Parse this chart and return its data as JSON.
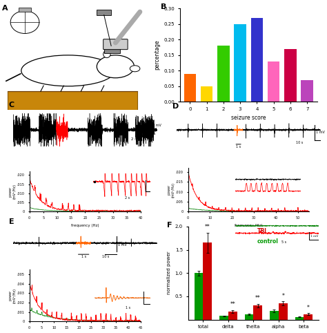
{
  "panel_B": {
    "seizure_scores": [
      0,
      1,
      2,
      3,
      4,
      5,
      6,
      7
    ],
    "percentages": [
      0.09,
      0.05,
      0.18,
      0.25,
      0.27,
      0.13,
      0.17,
      0.07
    ],
    "colors": [
      "#FF6600",
      "#FFD700",
      "#33CC00",
      "#00BBEE",
      "#3333CC",
      "#FF66BB",
      "#CC0044",
      "#BB44BB"
    ],
    "ylim": [
      0,
      0.3
    ],
    "yticks": [
      0.0,
      0.05,
      0.1,
      0.15,
      0.2,
      0.25,
      0.3
    ],
    "xlabel": "seizure score",
    "ylabel": "percentage"
  },
  "panel_F": {
    "categories": [
      "total",
      "delta",
      "thelta",
      "alpha",
      "beta"
    ],
    "green_values": [
      1.0,
      0.08,
      0.11,
      0.19,
      0.06
    ],
    "red_values": [
      1.65,
      0.18,
      0.3,
      0.35,
      0.12
    ],
    "green_errors": [
      0.05,
      0.01,
      0.015,
      0.025,
      0.007
    ],
    "red_errors": [
      0.22,
      0.03,
      0.04,
      0.04,
      0.018
    ],
    "green_color": "#009900",
    "red_color": "#CC0000",
    "ylabel": "normalized power",
    "ylim": [
      0,
      2.0
    ],
    "yticks": [
      0.5,
      1.0,
      1.5,
      2.0
    ],
    "significance_red": [
      "**",
      "**",
      "**",
      "*",
      "*"
    ],
    "legend_tbi": "TBI",
    "legend_control": "control"
  }
}
